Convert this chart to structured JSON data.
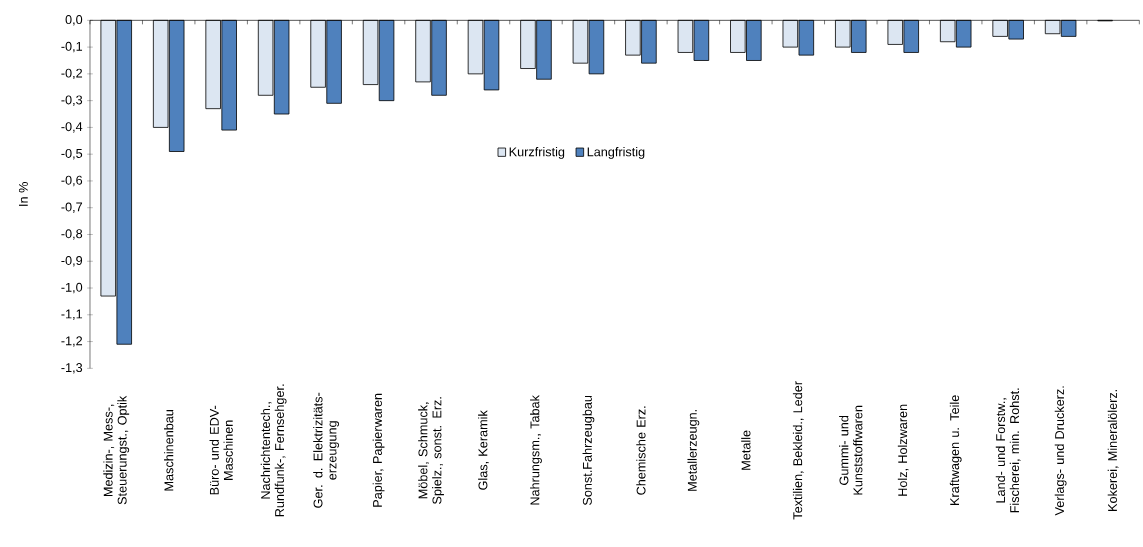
{
  "chart_data": {
    "type": "bar",
    "ylabel": "In %",
    "categories": [
      "Medizin-, Mess-, Steuerungst., Optik",
      "Maschinenbau",
      "Büro- und EDV-Maschinen",
      "Nachrichtentech., Rundfunk-, Fernsehger.",
      "Ger. d. Elektrizitäts-erzeugung",
      "Papier, Papierwaren",
      "Möbel, Schmuck, Spielz., sonst. Erz.",
      "Glas, Keramik",
      "Nahrungsm., Tabak",
      "Sonst.Fahrzeugbau",
      "Chemische Erz.",
      "Metallerzeugn.",
      "Metalle",
      "Textilien, Bekleid., Leder",
      "Gummi- und Kunststoffwaren",
      "Holz, Holzwaren",
      "Kraftwagen u. Teile",
      "Land- und Forstw., Fischerei, min. Rohst.",
      "Verlags- und Druckerz.",
      "Kokerei, Mineralölerz."
    ],
    "series": [
      {
        "name": "Kurzfristig",
        "color": "#dce6f2",
        "values": [
          -1.03,
          -0.4,
          -0.33,
          -0.28,
          -0.25,
          -0.24,
          -0.23,
          -0.2,
          -0.18,
          -0.16,
          -0.13,
          -0.12,
          -0.12,
          -0.1,
          -0.1,
          -0.09,
          -0.08,
          -0.06,
          -0.05,
          -0.002
        ]
      },
      {
        "name": "Langfristig",
        "color": "#4f81bd",
        "values": [
          -1.21,
          -0.49,
          -0.41,
          -0.35,
          -0.31,
          -0.3,
          -0.28,
          -0.26,
          -0.22,
          -0.2,
          -0.16,
          -0.15,
          -0.15,
          -0.13,
          -0.12,
          -0.12,
          -0.1,
          -0.07,
          -0.06,
          null
        ]
      }
    ],
    "ylim": [
      -1.3,
      0
    ],
    "yticks": [
      {
        "value": 0,
        "label": "0,0"
      },
      {
        "value": -0.1,
        "label": "-0,1"
      },
      {
        "value": -0.2,
        "label": "-0,2"
      },
      {
        "value": -0.3,
        "label": "-0,3"
      },
      {
        "value": -0.4,
        "label": "-0,4"
      },
      {
        "value": -0.5,
        "label": "-0,5"
      },
      {
        "value": -0.6,
        "label": "-0,6"
      },
      {
        "value": -0.7,
        "label": "-0,7"
      },
      {
        "value": -0.8,
        "label": "-0,8"
      },
      {
        "value": -0.9,
        "label": "-0,9"
      },
      {
        "value": -1.0,
        "label": "-1,0"
      },
      {
        "value": -1.1,
        "label": "-1,1"
      },
      {
        "value": -1.2,
        "label": "-1,2"
      },
      {
        "value": -1.3,
        "label": "-1,3"
      }
    ],
    "legend": "center",
    "grid": false
  }
}
